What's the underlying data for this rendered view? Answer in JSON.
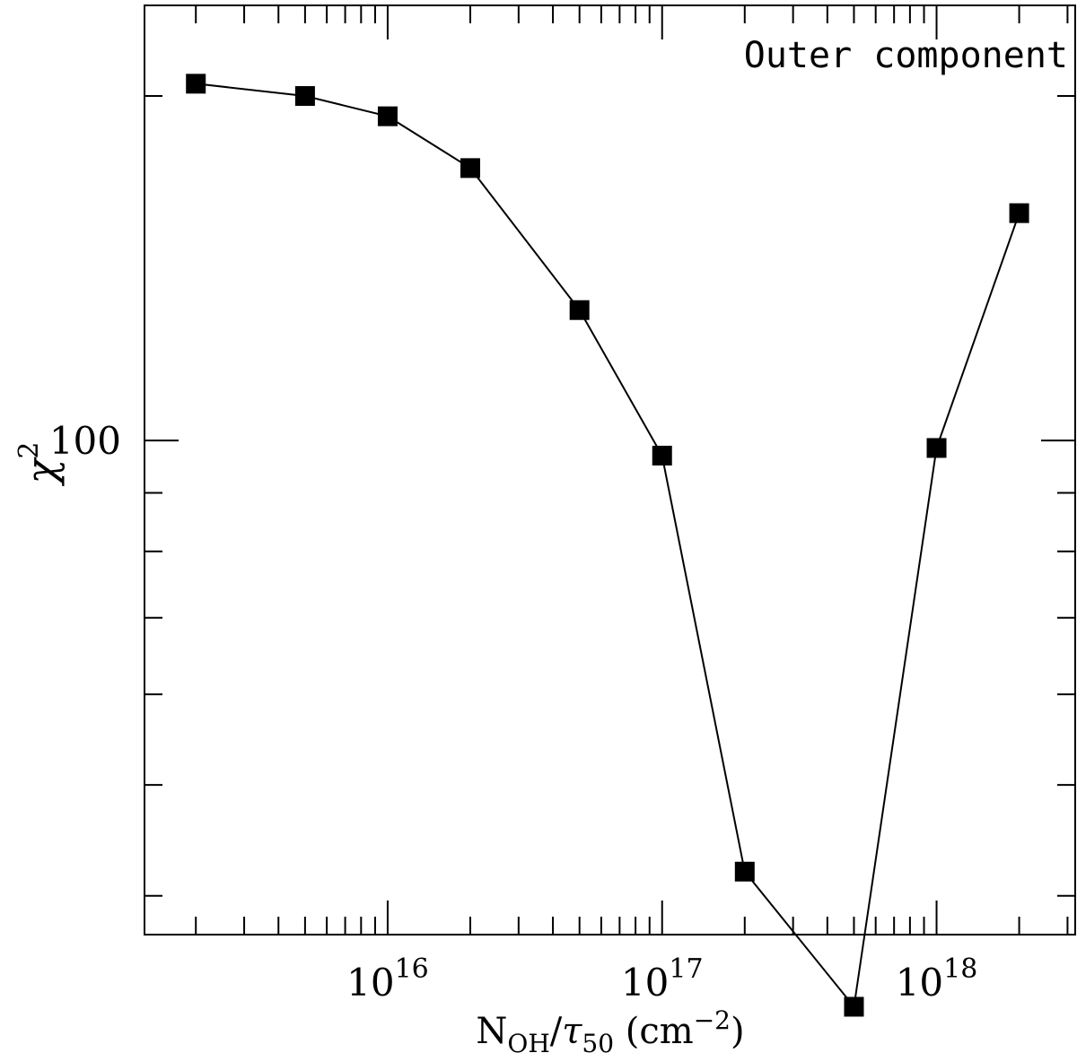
{
  "chart_data": {
    "type": "line",
    "title": "",
    "annotation": "Outer component",
    "x_scale": "log",
    "y_scale": "log",
    "xlim": [
      1300000000000000.0,
      3.2e+18
    ],
    "ylim": [
      37,
      240
    ],
    "x_tick_labels": [
      {
        "value": 1e+16,
        "base": "10",
        "exp": "16"
      },
      {
        "value": 1e+17,
        "base": "10",
        "exp": "17"
      },
      {
        "value": 1e+18,
        "base": "10",
        "exp": "18"
      }
    ],
    "y_tick_labels": [
      {
        "value": 100,
        "text": "100"
      }
    ],
    "xlabel": {
      "main": "N",
      "sub1": "OH",
      "slash": "/",
      "tau": "τ",
      "sub2": "50",
      "unit_open": " (cm",
      "unit_exp": "−2",
      "unit_close": ")"
    },
    "ylabel": {
      "chi": "χ",
      "exp": "2"
    },
    "series": [
      {
        "marker": "square",
        "color": "#000000",
        "x": [
          2000000000000000.0,
          5000000000000000.0,
          1e+16,
          2e+16,
          5e+16,
          1e+17,
          2e+17,
          5e+17,
          1e+18,
          2e+18
        ],
        "y": [
          205,
          200,
          192,
          173,
          130,
          97,
          42,
          32,
          98.5,
          158
        ]
      }
    ],
    "grid": false
  }
}
